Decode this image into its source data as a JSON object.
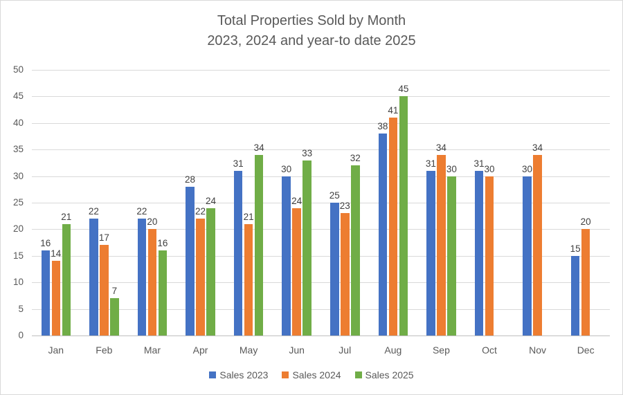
{
  "chart_data": {
    "type": "bar",
    "title": "Total Properties Sold by Month",
    "subtitle": "2023, 2024 and year-to date 2025",
    "categories": [
      "Jan",
      "Feb",
      "Mar",
      "Apr",
      "May",
      "Jun",
      "Jul",
      "Aug",
      "Sep",
      "Oct",
      "Nov",
      "Dec"
    ],
    "series": [
      {
        "name": "Sales 2023",
        "color": "#4472C4",
        "values": [
          16,
          22,
          22,
          28,
          31,
          30,
          25,
          38,
          31,
          31,
          30,
          15
        ]
      },
      {
        "name": "Sales 2024",
        "color": "#ED7D31",
        "values": [
          14,
          17,
          20,
          22,
          21,
          24,
          23,
          41,
          34,
          30,
          34,
          20
        ]
      },
      {
        "name": "Sales 2025",
        "color": "#70AD47",
        "values": [
          21,
          7,
          16,
          24,
          34,
          33,
          32,
          45,
          30,
          null,
          null,
          null
        ]
      }
    ],
    "y_axis": {
      "min": 0,
      "max": 50,
      "step": 5,
      "tick_labels": [
        "0",
        "5",
        "10",
        "15",
        "20",
        "25",
        "30",
        "35",
        "40",
        "45",
        "50"
      ]
    },
    "legend": {
      "position": "bottom",
      "entries": [
        "Sales 2023",
        "Sales 2024",
        "Sales 2025"
      ]
    },
    "grid": true,
    "data_labels": true
  },
  "colors": {
    "background": "#FFFFFF",
    "border": "#D9D9D9",
    "gridline": "#D9D9D9",
    "axis_line": "#BFBFBF",
    "title_text": "#595959",
    "axis_text": "#595959",
    "data_label_text": "#404040"
  }
}
